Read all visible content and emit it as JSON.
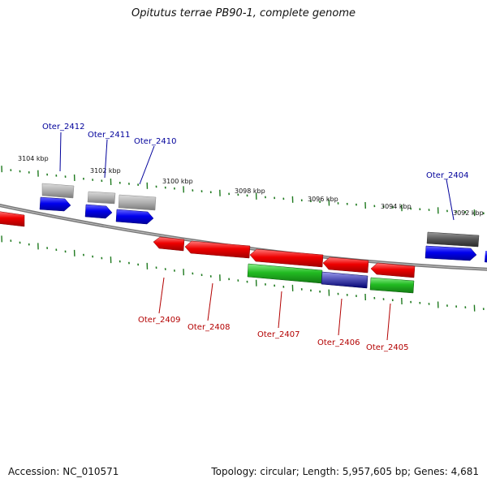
{
  "title": "Opitutus terrae PB90-1, complete genome",
  "accession": "Accession: NC_010571",
  "topology": "Topology: circular; Length: 5,957,605 bp; Genes: 4,681",
  "colors": {
    "backbone": "#7a7a7a",
    "tick": "#1f7a1f",
    "forward_label": "#00009b",
    "reverse_label": "#b30000",
    "blue_gene": "#0000ee",
    "red_gene": "#ee0000",
    "green_gene": "#22bb22",
    "gray_gene": "#9a9a9a"
  },
  "scale_labels": [
    {
      "text": "3104 kbp"
    },
    {
      "text": "3102 kbp"
    },
    {
      "text": "3100 kbp"
    },
    {
      "text": "3098 kbp"
    },
    {
      "text": "3096 kbp"
    },
    {
      "text": "3094 kbp"
    },
    {
      "text": "3092 kbp"
    }
  ],
  "genes_forward": [
    {
      "name": "Oter_2412"
    },
    {
      "name": "Oter_2411"
    },
    {
      "name": "Oter_2410"
    },
    {
      "name": "Oter_2404"
    }
  ],
  "genes_reverse": [
    {
      "name": "Oter_2409"
    },
    {
      "name": "Oter_2408"
    },
    {
      "name": "Oter_2407"
    },
    {
      "name": "Oter_2406"
    },
    {
      "name": "Oter_2405"
    }
  ]
}
